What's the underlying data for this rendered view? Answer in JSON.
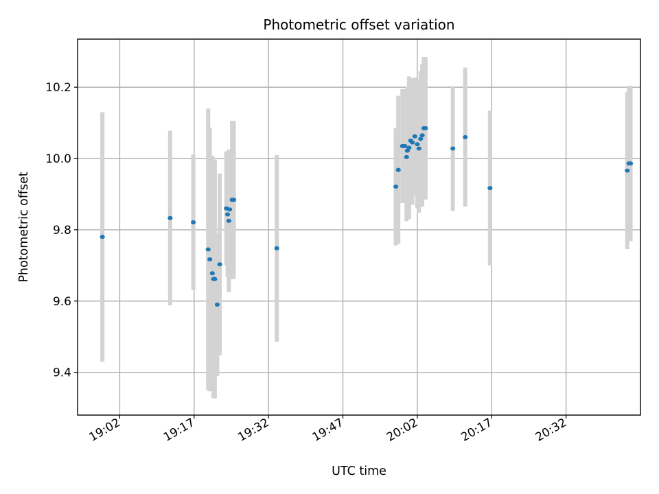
{
  "chart_data": {
    "type": "scatter",
    "title": "Photometric offset variation",
    "xlabel": "UTC time",
    "ylabel": "Photometric offset",
    "x_unit": "UTC HH:MM:SS",
    "xlim": [
      "18:53:30",
      "20:47:00"
    ],
    "ylim": [
      9.28,
      10.335
    ],
    "x_ticks": [
      "19:02",
      "19:17",
      "19:32",
      "19:47",
      "20:02",
      "20:17",
      "20:32"
    ],
    "y_ticks": [
      9.4,
      9.6,
      9.8,
      10.0,
      10.2
    ],
    "y_tick_labels": [
      "9.4",
      "9.6",
      "9.8",
      "10.0",
      "10.2"
    ],
    "grid": true,
    "series": [
      {
        "marker_color": "#1f77b4",
        "errorbar_color": "#d3d3d3",
        "points": [
          {
            "t": "18:58:30",
            "y": 9.78,
            "err": 0.35
          },
          {
            "t": "19:12:10",
            "y": 9.833,
            "err": 0.245
          },
          {
            "t": "19:16:50",
            "y": 9.821,
            "err": 0.19
          },
          {
            "t": "19:19:50",
            "y": 9.745,
            "err": 0.395
          },
          {
            "t": "19:20:10",
            "y": 9.717,
            "err": 0.37
          },
          {
            "t": "19:20:40",
            "y": 9.678,
            "err": 0.33
          },
          {
            "t": "19:20:55",
            "y": 9.662,
            "err": 0.335
          },
          {
            "t": "19:21:10",
            "y": 9.662,
            "err": 0.335
          },
          {
            "t": "19:21:40",
            "y": 9.59,
            "err": 0.2
          },
          {
            "t": "19:22:10",
            "y": 9.703,
            "err": 0.255
          },
          {
            "t": "19:23:30",
            "y": 9.86,
            "err": 0.16
          },
          {
            "t": "19:23:45",
            "y": 9.843,
            "err": 0.175
          },
          {
            "t": "19:24:00",
            "y": 9.825,
            "err": 0.2
          },
          {
            "t": "19:24:10",
            "y": 9.857,
            "err": 0.165
          },
          {
            "t": "19:24:40",
            "y": 9.884,
            "err": 0.222
          },
          {
            "t": "19:25:00",
            "y": 9.884,
            "err": 0.222
          },
          {
            "t": "19:33:40",
            "y": 9.748,
            "err": 0.262
          },
          {
            "t": "19:57:40",
            "y": 9.921,
            "err": 0.165
          },
          {
            "t": "19:58:10",
            "y": 9.968,
            "err": 0.208
          },
          {
            "t": "19:59:00",
            "y": 10.035,
            "err": 0.16
          },
          {
            "t": "19:59:30",
            "y": 10.035,
            "err": 0.16
          },
          {
            "t": "19:59:50",
            "y": 10.004,
            "err": 0.18
          },
          {
            "t": "20:00:00",
            "y": 10.022,
            "err": 0.18
          },
          {
            "t": "20:00:20",
            "y": 10.03,
            "err": 0.2
          },
          {
            "t": "20:00:40",
            "y": 10.05,
            "err": 0.175
          },
          {
            "t": "20:01:00",
            "y": 10.045,
            "err": 0.175
          },
          {
            "t": "20:01:30",
            "y": 10.062,
            "err": 0.165
          },
          {
            "t": "20:02:00",
            "y": 10.04,
            "err": 0.18
          },
          {
            "t": "20:02:20",
            "y": 10.028,
            "err": 0.18
          },
          {
            "t": "20:02:40",
            "y": 10.055,
            "err": 0.19
          },
          {
            "t": "20:03:00",
            "y": 10.065,
            "err": 0.2
          },
          {
            "t": "20:03:20",
            "y": 10.085,
            "err": 0.2
          },
          {
            "t": "20:03:40",
            "y": 10.085,
            "err": 0.2
          },
          {
            "t": "20:09:10",
            "y": 10.028,
            "err": 0.175
          },
          {
            "t": "20:11:40",
            "y": 10.06,
            "err": 0.195
          },
          {
            "t": "20:16:40",
            "y": 9.917,
            "err": 0.217
          },
          {
            "t": "20:44:20",
            "y": 9.966,
            "err": 0.22
          },
          {
            "t": "20:44:40",
            "y": 9.986,
            "err": 0.218
          },
          {
            "t": "20:45:00",
            "y": 9.986,
            "err": 0.218
          }
        ]
      }
    ]
  }
}
